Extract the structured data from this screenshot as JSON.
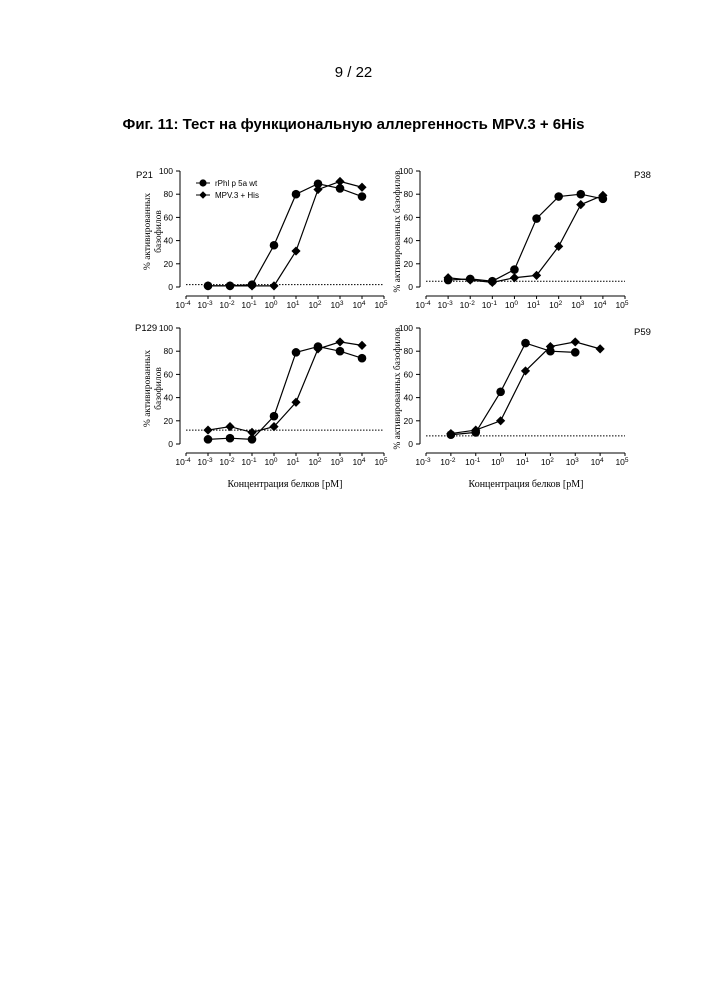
{
  "page_number": "9 / 22",
  "figure_title": "Фиг. 11: Тест на функциональную аллергенность MPV.3 + 6His",
  "legend": [
    "rPhl p 5a wt",
    "MPV.3 + His"
  ],
  "x_axis_label": "Концентрация белков [pM]",
  "colors": {
    "line": "#000000"
  },
  "chart_data": [
    {
      "type": "line",
      "panel": "P21",
      "ylabel_line1": "% активированных",
      "ylabel_line2": "базофилов",
      "xlabel": "",
      "x_scale": "log",
      "xlim": [
        0.0001,
        100000
      ],
      "ylim": [
        0,
        100
      ],
      "x_tick_labels": [
        [
          "10",
          "-4"
        ],
        [
          "10",
          "-3"
        ],
        [
          "10",
          "-2"
        ],
        [
          "10",
          "-1"
        ],
        [
          "10",
          "0"
        ],
        [
          "10",
          "1"
        ],
        [
          "10",
          "2"
        ],
        [
          "10",
          "3"
        ],
        [
          "10",
          "4"
        ],
        [
          "10",
          "5"
        ]
      ],
      "y_ticks": [
        0,
        20,
        40,
        60,
        80,
        100
      ],
      "baseline": 2,
      "series": [
        {
          "name": "rPhl p 5a wt",
          "marker": "circle",
          "x": [
            0.001,
            0.01,
            0.1,
            1,
            10,
            100,
            1000,
            10000
          ],
          "y": [
            1,
            1,
            2,
            36,
            80,
            89,
            85,
            78
          ]
        },
        {
          "name": "MPV.3 + His",
          "marker": "diamond",
          "x": [
            0.001,
            0.01,
            0.1,
            1,
            10,
            100,
            1000,
            10000
          ],
          "y": [
            1,
            1,
            1,
            1,
            31,
            84,
            91,
            86
          ]
        }
      ]
    },
    {
      "type": "line",
      "panel": "P38",
      "ylabel_line1": "% активированных базофилов",
      "ylabel_line2": "",
      "xlabel": "",
      "x_scale": "log",
      "xlim": [
        0.0001,
        100000
      ],
      "ylim": [
        0,
        100
      ],
      "x_tick_labels": [
        [
          "10",
          "-4"
        ],
        [
          "10",
          "-3"
        ],
        [
          "10",
          "-2"
        ],
        [
          "10",
          "-1"
        ],
        [
          "10",
          "0"
        ],
        [
          "10",
          "1"
        ],
        [
          "10",
          "2"
        ],
        [
          "10",
          "3"
        ],
        [
          "10",
          "4"
        ],
        [
          "10",
          "5"
        ]
      ],
      "y_ticks": [
        0,
        20,
        40,
        60,
        80,
        100
      ],
      "baseline": 5,
      "series": [
        {
          "name": "rPhl p 5a wt",
          "marker": "circle",
          "x": [
            0.001,
            0.01,
            0.1,
            1,
            10,
            100,
            1000,
            10000
          ],
          "y": [
            6,
            7,
            5,
            15,
            59,
            78,
            80,
            76
          ]
        },
        {
          "name": "MPV.3 + His",
          "marker": "diamond",
          "x": [
            0.001,
            0.01,
            0.1,
            1,
            10,
            100,
            1000,
            10000
          ],
          "y": [
            8,
            6,
            4,
            8,
            10,
            35,
            71,
            79
          ]
        }
      ]
    },
    {
      "type": "line",
      "panel": "P129",
      "ylabel_line1": "% активированных",
      "ylabel_line2": "базофилов",
      "xlabel": "Концентрация белков [pM]",
      "x_scale": "log",
      "xlim": [
        0.0001,
        100000
      ],
      "ylim": [
        0,
        100
      ],
      "x_tick_labels": [
        [
          "10",
          "-4"
        ],
        [
          "10",
          "-3"
        ],
        [
          "10",
          "-2"
        ],
        [
          "10",
          "-1"
        ],
        [
          "10",
          "0"
        ],
        [
          "10",
          "1"
        ],
        [
          "10",
          "2"
        ],
        [
          "10",
          "3"
        ],
        [
          "10",
          "4"
        ],
        [
          "10",
          "5"
        ]
      ],
      "y_ticks": [
        0,
        20,
        40,
        60,
        80,
        100
      ],
      "baseline": 12,
      "series": [
        {
          "name": "rPhl p 5a wt",
          "marker": "circle",
          "x": [
            0.001,
            0.01,
            0.1,
            1,
            10,
            100,
            1000,
            10000
          ],
          "y": [
            4,
            5,
            4,
            24,
            79,
            84,
            80,
            74
          ]
        },
        {
          "name": "MPV.3 + His",
          "marker": "diamond",
          "x": [
            0.001,
            0.01,
            0.1,
            1,
            10,
            100,
            1000,
            10000
          ],
          "y": [
            12,
            15,
            10,
            15,
            36,
            82,
            88,
            85
          ]
        }
      ]
    },
    {
      "type": "line",
      "panel": "P59",
      "ylabel_line1": "% активированных базофилов",
      "ylabel_line2": "",
      "xlabel": "Концентрация белков [pM]",
      "x_scale": "log",
      "xlim": [
        0.001,
        100000
      ],
      "ylim": [
        0,
        100
      ],
      "x_tick_labels": [
        [
          "10",
          "-3"
        ],
        [
          "10",
          "-2"
        ],
        [
          "10",
          "-1"
        ],
        [
          "10",
          "0"
        ],
        [
          "10",
          "1"
        ],
        [
          "10",
          "2"
        ],
        [
          "10",
          "3"
        ],
        [
          "10",
          "4"
        ],
        [
          "10",
          "5"
        ]
      ],
      "y_ticks": [
        0,
        20,
        40,
        60,
        80,
        100
      ],
      "baseline": 7,
      "series": [
        {
          "name": "rPhl p 5a wt",
          "marker": "circle",
          "x": [
            0.01,
            0.1,
            1,
            10,
            100,
            1000
          ],
          "y": [
            8,
            10,
            45,
            87,
            80,
            79
          ]
        },
        {
          "name": "MPV.3 + His",
          "marker": "diamond",
          "x": [
            0.01,
            0.1,
            1,
            10,
            100,
            1000,
            10000
          ],
          "y": [
            9,
            12,
            20,
            63,
            84,
            88,
            82
          ]
        }
      ]
    }
  ]
}
